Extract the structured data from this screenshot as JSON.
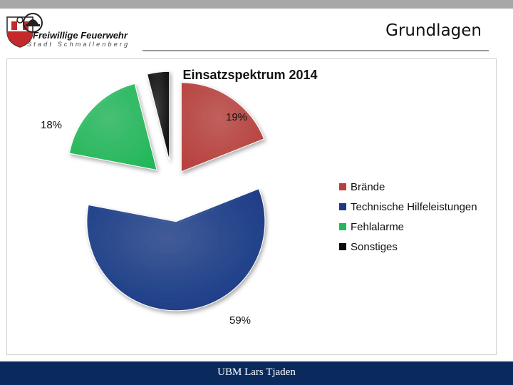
{
  "header": {
    "logo_title": "Freiwillige Feuerwehr",
    "logo_subtitle": "Stadt Schmallenberg",
    "slide_title": "Grundlagen"
  },
  "footer": {
    "text": "UBM Lars Tjaden"
  },
  "colors": {
    "footer_bg": "#0a2a5e",
    "top_strip": "#a7a7a7"
  },
  "chart_data": {
    "type": "pie",
    "title": "Einsatzspektrum 2014",
    "legend_position": "right",
    "series": [
      {
        "name": "Brände",
        "value": 19,
        "label": "19%",
        "color": "#b8403c"
      },
      {
        "name": "Technische Hilfeleistungen",
        "value": 59,
        "label": "59%",
        "color": "#1a3a86"
      },
      {
        "name": "Fehlalarme",
        "value": 18,
        "label": "18%",
        "color": "#22b85a"
      },
      {
        "name": "Sonstiges",
        "value": 4,
        "label": "",
        "color": "#0b0b0b"
      }
    ]
  }
}
